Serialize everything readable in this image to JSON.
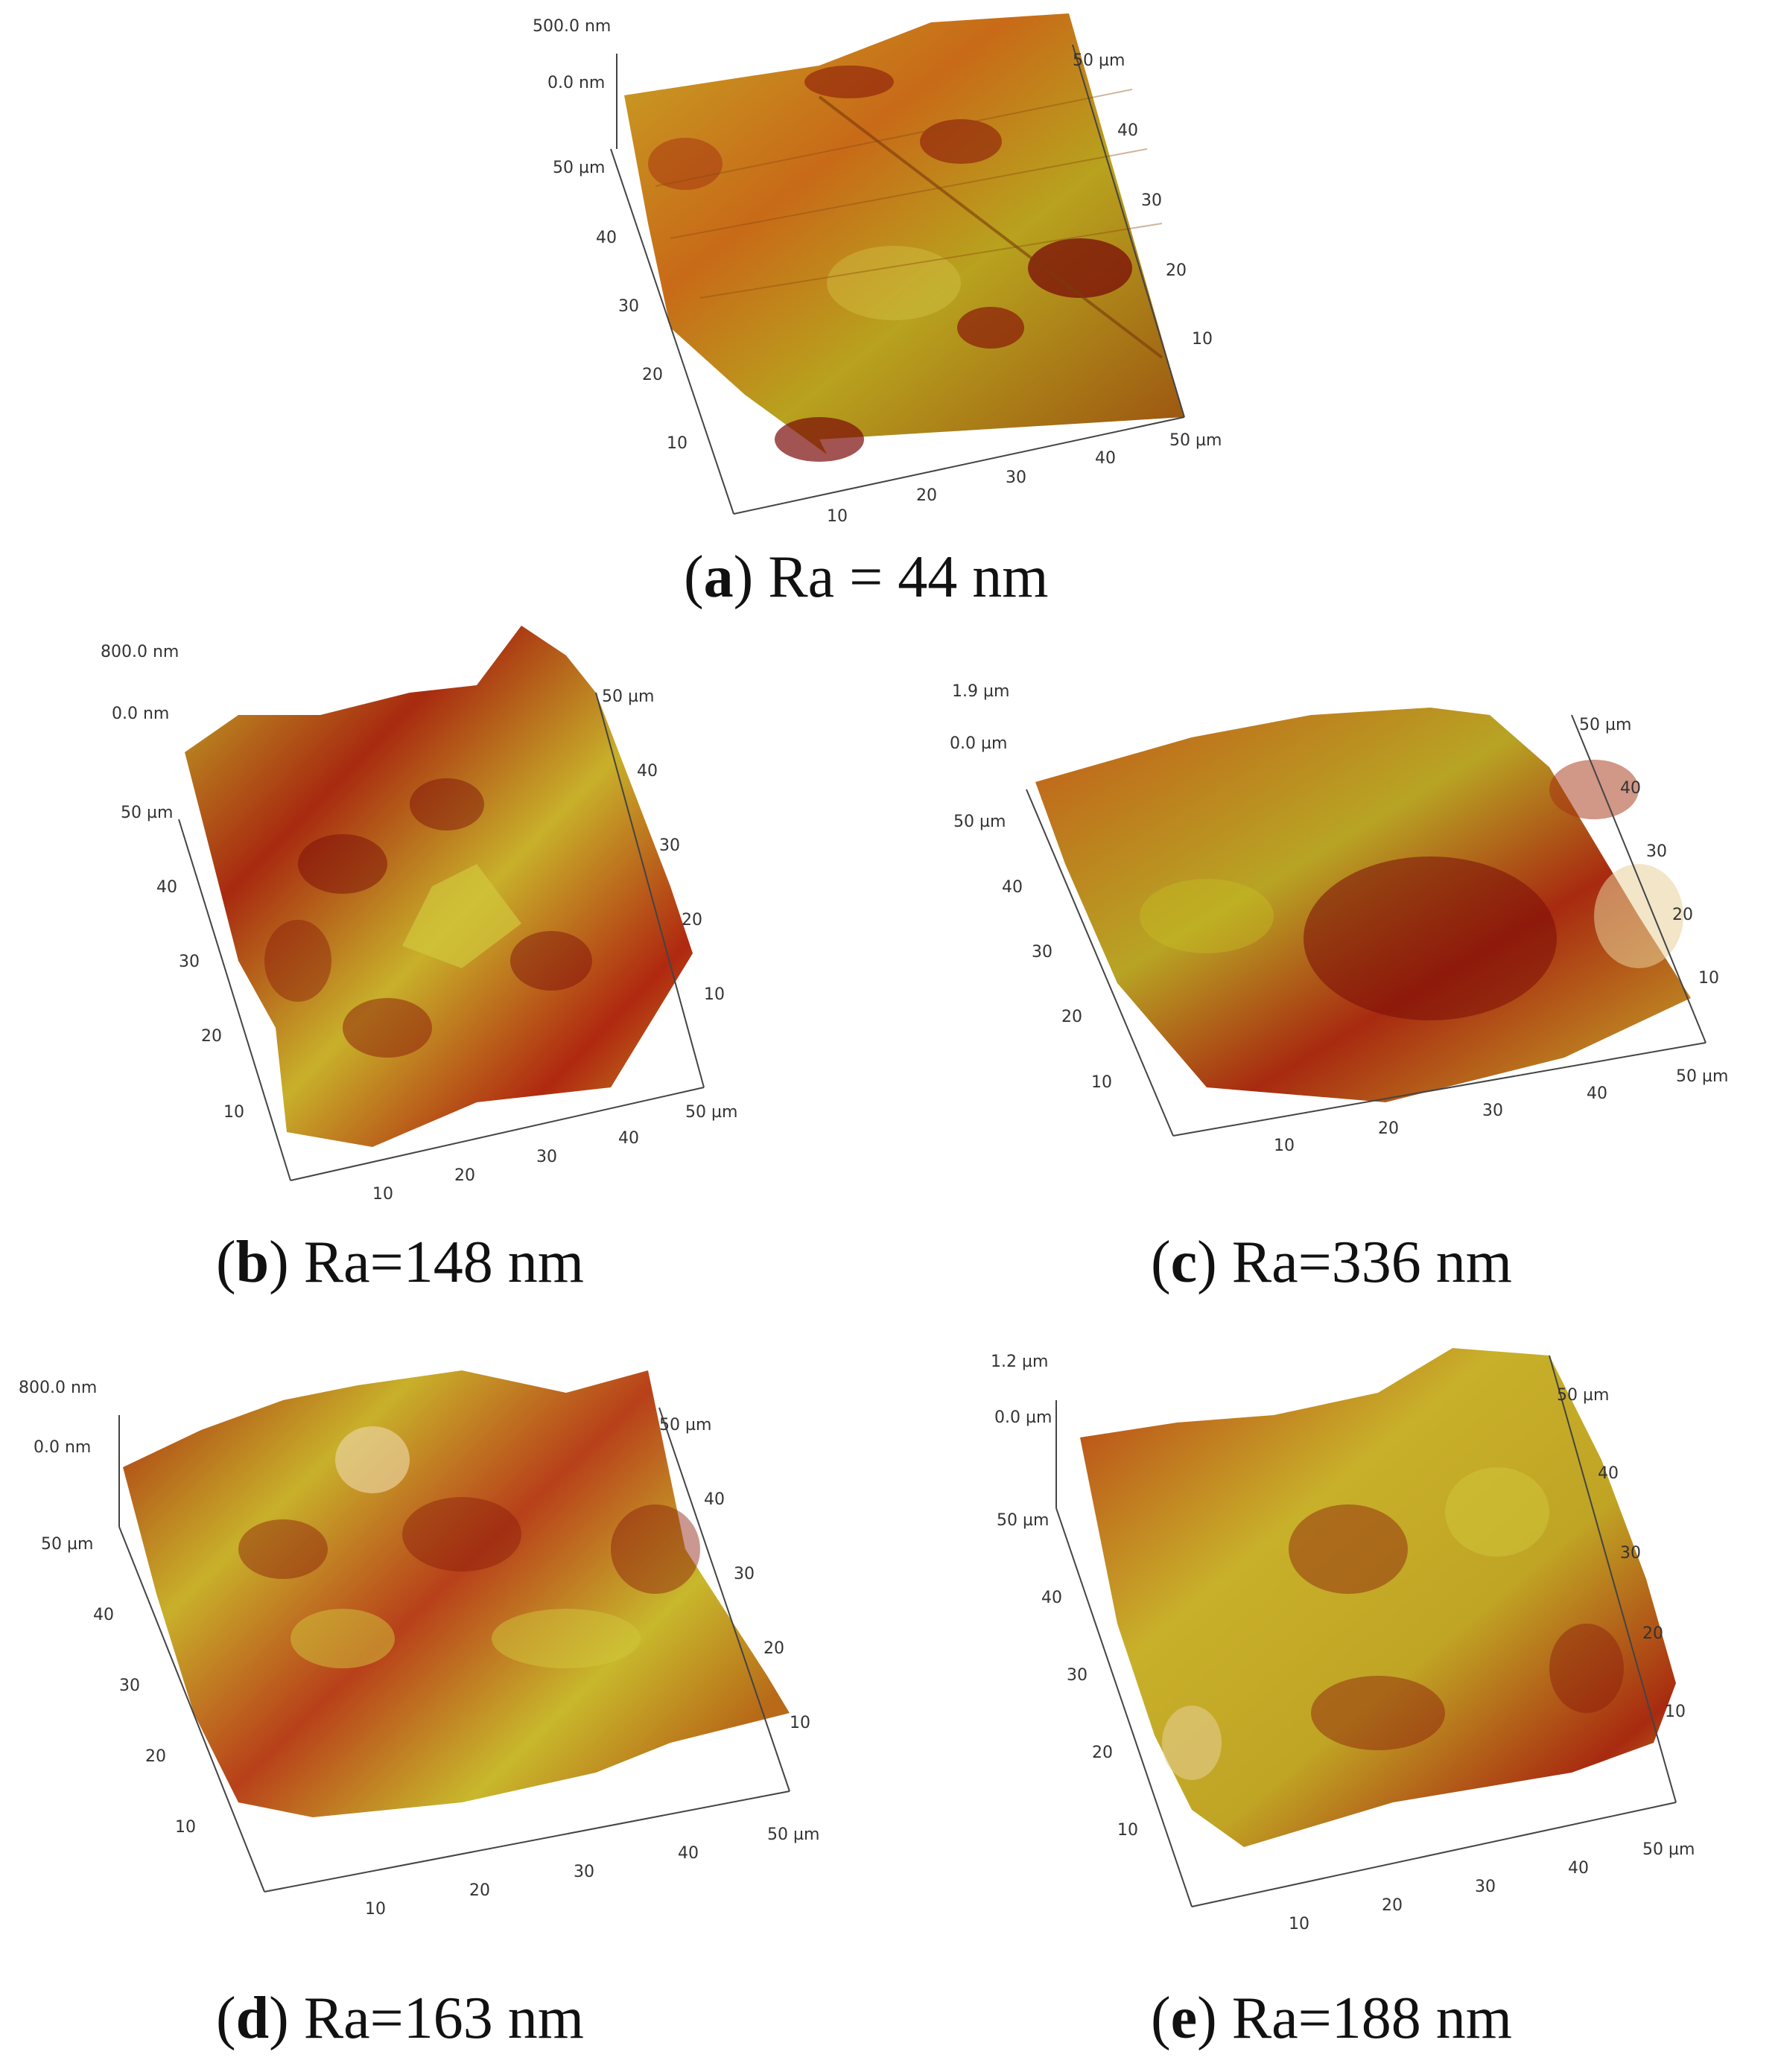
{
  "colors": {
    "surface_dark": "#7a0c08",
    "surface_mid": "#c23c14",
    "surface_orange": "#d8781c",
    "surface_yellow": "#c8c024",
    "surface_light": "#e8d09a",
    "axis": "#444444"
  },
  "panels": [
    {
      "id": "a",
      "letter": "a",
      "caption": ") Ra = 44 nm",
      "z_top": "500.0 nm",
      "z_zero": "0.0 nm",
      "y_ticks": [
        "50 µm",
        "40",
        "30",
        "20",
        "10"
      ],
      "x_ticks": [
        "10",
        "20",
        "30",
        "40",
        "50 µm"
      ],
      "right_ticks": [
        "50 µm",
        "40",
        "30",
        "20",
        "10"
      ]
    },
    {
      "id": "b",
      "letter": "b",
      "caption": ") Ra=148 nm",
      "z_top": "800.0 nm",
      "z_zero": "0.0 nm",
      "y_ticks": [
        "50 µm",
        "40",
        "30",
        "20",
        "10"
      ],
      "x_ticks": [
        "10",
        "20",
        "30",
        "40",
        "50 µm"
      ],
      "right_ticks": [
        "50 µm",
        "40",
        "30",
        "20",
        "10"
      ]
    },
    {
      "id": "c",
      "letter": "c",
      "caption": ") Ra=336 nm",
      "z_top": "1.9 µm",
      "z_zero": "0.0 µm",
      "y_ticks": [
        "50 µm",
        "40",
        "30",
        "20",
        "10"
      ],
      "x_ticks": [
        "10",
        "20",
        "30",
        "40",
        "50 µm"
      ],
      "right_ticks": [
        "50 µm",
        "40",
        "30",
        "20",
        "10"
      ]
    },
    {
      "id": "d",
      "letter": "d",
      "caption": ") Ra=163 nm",
      "z_top": "800.0 nm",
      "z_zero": "0.0 nm",
      "y_ticks": [
        "50 µm",
        "40",
        "30",
        "20",
        "10"
      ],
      "x_ticks": [
        "10",
        "20",
        "30",
        "40",
        "50 µm"
      ],
      "right_ticks": [
        "50 µm",
        "40",
        "30",
        "20",
        "10"
      ]
    },
    {
      "id": "e",
      "letter": "e",
      "caption": ") Ra=188 nm",
      "z_top": "1.2 µm",
      "z_zero": "0.0 µm",
      "y_ticks": [
        "50 µm",
        "40",
        "30",
        "20",
        "10"
      ],
      "x_ticks": [
        "10",
        "20",
        "30",
        "40",
        "50 µm"
      ],
      "right_ticks": [
        "50 µm",
        "40",
        "30",
        "20",
        "10"
      ]
    }
  ]
}
